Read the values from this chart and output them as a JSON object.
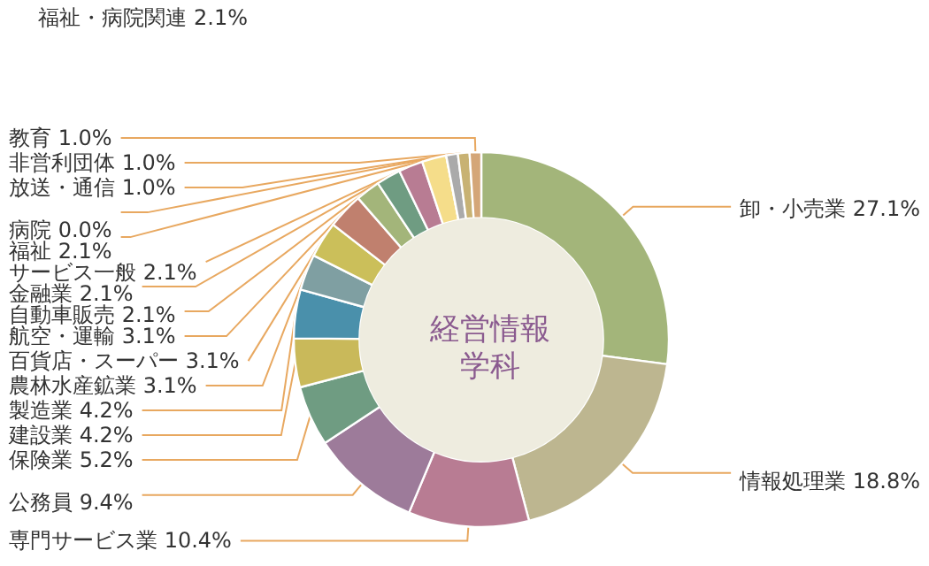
{
  "chart_data": {
    "type": "donut",
    "title": "経営情報学科",
    "categories": [
      "卸・小売業",
      "情報処理業",
      "専門サービス業",
      "公務員",
      "保険業",
      "建設業",
      "製造業",
      "農林水産鉱業",
      "百貨店・スーパー",
      "航空・運輸",
      "自動車販売",
      "金融業",
      "サービス一般",
      "福祉",
      "病院",
      "放送・通信",
      "非営利団体",
      "教育"
    ],
    "values": [
      27.1,
      18.8,
      10.4,
      9.4,
      5.2,
      4.2,
      4.2,
      3.1,
      3.1,
      3.1,
      2.1,
      2.1,
      2.1,
      2.1,
      0.0,
      1.0,
      1.0,
      1.0
    ],
    "value_labels": [
      "27.1%",
      "18.8%",
      "10.4%",
      "9.4%",
      "5.2%",
      "4.2%",
      "4.2%",
      "3.1%",
      "3.1%",
      "3.1%",
      "2.1%",
      "2.1%",
      "2.1%",
      "2.1%",
      "0.0%",
      "1.0%",
      "1.0%",
      "1.0%"
    ],
    "colors": [
      "#a3b57a",
      "#bdb690",
      "#b87c93",
      "#9d7b9a",
      "#6f9c82",
      "#c9b95a",
      "#4a90ab",
      "#7f9fa2",
      "#cbbf5a",
      "#c0806e",
      "#a3b57a",
      "#6f9c82",
      "#b87c93",
      "#f5dd8a",
      "#f0c040",
      "#aaaaaa",
      "#c8b273",
      "#d4a678"
    ],
    "annotations": [
      "福祉・病院関連 2.1%"
    ]
  }
}
